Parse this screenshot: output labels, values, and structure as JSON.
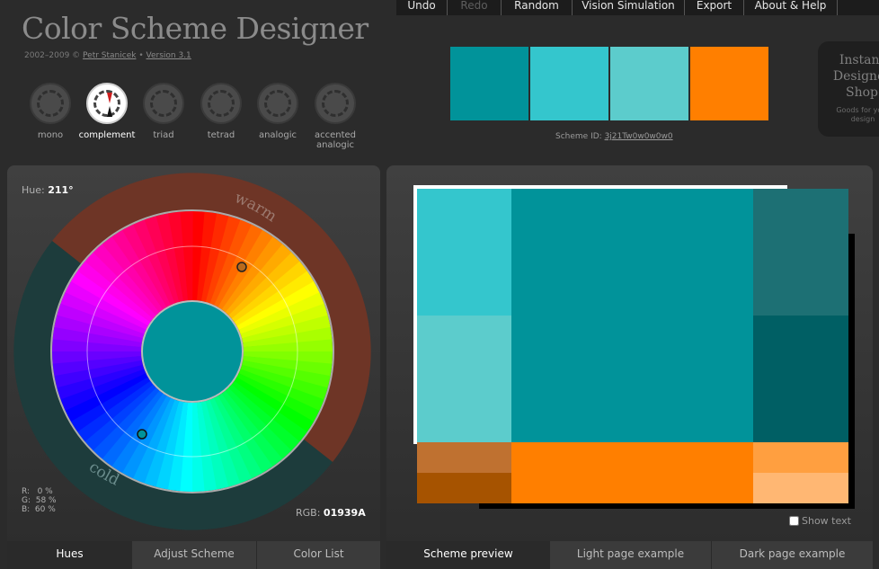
{
  "header": {
    "title": "Color Scheme Designer",
    "copyright_prefix": "2002–2009 ©",
    "author": "Petr Stanicek",
    "separator": "•",
    "version": "Version 3.1"
  },
  "menu": {
    "items": [
      {
        "label": "Undo",
        "enabled": true
      },
      {
        "label": "Redo",
        "enabled": false
      },
      {
        "label": "Random",
        "enabled": true
      },
      {
        "label": "Vision Simulation",
        "enabled": true
      },
      {
        "label": "Export",
        "enabled": true
      },
      {
        "label": "About & Help",
        "enabled": true
      }
    ]
  },
  "scheme_types": [
    {
      "label": "mono",
      "active": false
    },
    {
      "label": "complement",
      "active": true
    },
    {
      "label": "triad",
      "active": false
    },
    {
      "label": "tetrad",
      "active": false
    },
    {
      "label": "analogic",
      "active": false
    },
    {
      "label": "accented analogic",
      "active": false
    }
  ],
  "swatches": [
    "#01939A",
    "#34C6CD",
    "#5CCCCC",
    "#FF7F00"
  ],
  "scheme_id": {
    "label": "Scheme ID:",
    "value": "3j21Tw0w0w0w0"
  },
  "shop": {
    "title": "Instant Designer Shop",
    "subtitle": "Goods for your design"
  },
  "wheel": {
    "hue_label": "Hue:",
    "hue_value": "211°",
    "warm_label": "warm",
    "cold_label": "cold",
    "rgb": {
      "r": "R:   0 %",
      "g": "G:  58 %",
      "b": "B:  60 %"
    },
    "rgb_label": "RGB:",
    "rgb_hex": "01939A",
    "center_color": "#01939A"
  },
  "preview": {
    "main": "#01939A",
    "light1": "#34C6CD",
    "light2": "#5CCCCC",
    "dark1": "#1D7074",
    "dark2": "#005F64",
    "comp_main": "#FF7F00",
    "comp_dark1": "#BF7130",
    "comp_dark2": "#A65300",
    "comp_light1": "#FF9F40",
    "comp_light2": "#FFB773",
    "show_text_label": "Show text"
  },
  "tabs_left": [
    {
      "label": "Hues",
      "active": true
    },
    {
      "label": "Adjust Scheme",
      "active": false
    },
    {
      "label": "Color List",
      "active": false
    }
  ],
  "tabs_right": [
    {
      "label": "Scheme preview",
      "active": true
    },
    {
      "label": "Light page example",
      "active": false
    },
    {
      "label": "Dark page example",
      "active": false
    }
  ]
}
